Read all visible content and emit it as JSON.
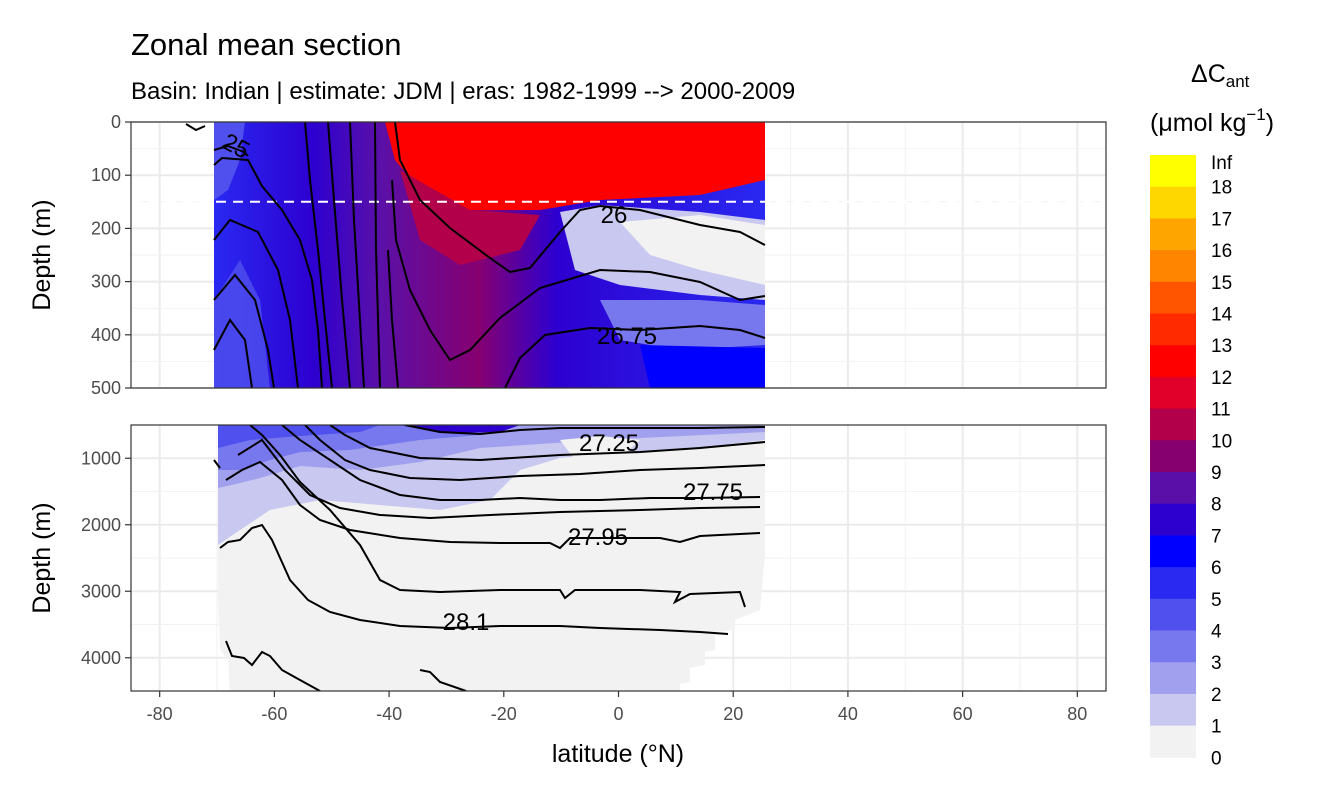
{
  "chart_data": {
    "type": "heatmap",
    "title": "Zonal mean section",
    "subtitle": "Basin: Indian | estimate: JDM  | eras: 1982-1999 --> 2000-2009",
    "xlabel": "latitude (°N)",
    "ylabel": "Depth (m)",
    "x_ticks": [
      "-80",
      "-60",
      "-40",
      "-20",
      "0",
      "20",
      "40",
      "60",
      "80"
    ],
    "xlim": [
      -85,
      85
    ],
    "data_lat_range": [
      -70,
      25
    ],
    "panels": [
      {
        "name": "upper",
        "ylim": [
          500,
          0
        ],
        "y_ticks": [
          "0",
          "100",
          "200",
          "300",
          "400",
          "500"
        ],
        "reference_line_depth": 150,
        "contour_labels": [
          "25",
          "26",
          "26.75"
        ]
      },
      {
        "name": "lower",
        "ylim": [
          4500,
          500
        ],
        "y_ticks": [
          "1000",
          "2000",
          "3000",
          "4000"
        ],
        "contour_labels": [
          "27.25",
          "27.75",
          "27.95",
          "28.1"
        ]
      }
    ],
    "legend": {
      "title_symbol": "ΔC",
      "title_subscript": "ant",
      "units_prefix": "(μmol kg",
      "units_exponent": "−1",
      "units_suffix": ")",
      "position": "right",
      "labels": [
        "Inf",
        "18",
        "17",
        "16",
        "15",
        "14",
        "13",
        "12",
        "11",
        "10",
        "9",
        "8",
        "7",
        "6",
        "5",
        "4",
        "3",
        "2",
        "1",
        "0"
      ],
      "colors": [
        "#ffff00",
        "#ffd700",
        "#ffa500",
        "#ff8400",
        "#ff5500",
        "#ff2a00",
        "#ff0000",
        "#e0002a",
        "#b3004a",
        "#860070",
        "#5a10a8",
        "#2d00d0",
        "#0000ff",
        "#2929f2",
        "#5050ee",
        "#7777ee",
        "#a0a0ee",
        "#c8c8f0",
        "#f2f2f2"
      ]
    }
  }
}
